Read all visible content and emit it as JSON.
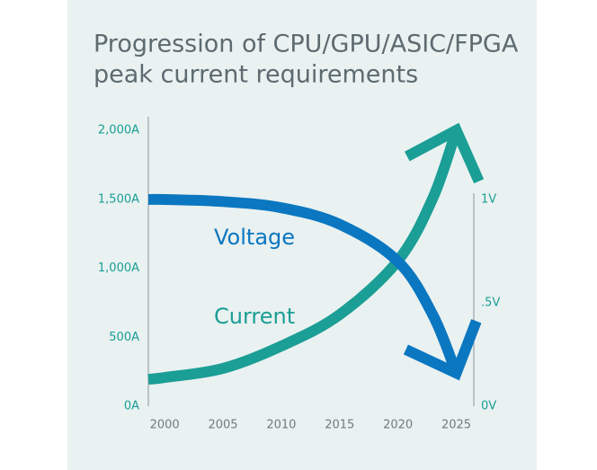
{
  "chart_data": {
    "type": "line",
    "title_lines": [
      "Progression of CPU/GPU/ASIC/FPGA",
      "peak current requirements"
    ],
    "x": [
      1998.6,
      2000,
      2005,
      2010,
      2015,
      2020,
      2023,
      2025
    ],
    "series": [
      {
        "name": "Current",
        "color": "#1a9e95",
        "axis": "y",
        "values": [
          195,
          208,
          274,
          436,
          664,
          1055,
          1511,
          2000
        ]
      },
      {
        "name": "Voltage",
        "color": "#0a77c0",
        "axis": "y2",
        "values": [
          1.0,
          1.0,
          0.99,
          0.96,
          0.88,
          0.7,
          0.44,
          0.16
        ]
      }
    ],
    "xlim": [
      1998.6,
      2026.5
    ],
    "xticks": [
      2000,
      2005,
      2010,
      2015,
      2020,
      2025
    ],
    "ylim": [
      0,
      2000
    ],
    "yticks": [
      {
        "value": 0,
        "label": "0A"
      },
      {
        "value": 500,
        "label": "500A"
      },
      {
        "value": 1000,
        "label": "1,000A"
      },
      {
        "value": 1500,
        "label": "1,500A"
      },
      {
        "value": 2000,
        "label": "2,000A"
      }
    ],
    "y2lim": [
      0,
      1
    ],
    "y2ticks": [
      {
        "value": 0,
        "label": "0V"
      },
      {
        "value": 0.5,
        "label": ".5V"
      },
      {
        "value": 1,
        "label": "1V"
      }
    ]
  }
}
